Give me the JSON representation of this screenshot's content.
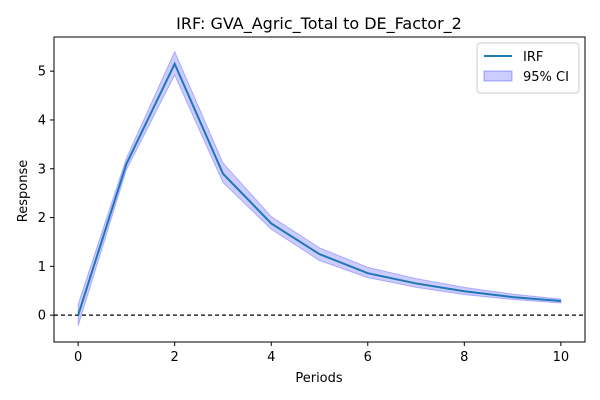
{
  "chart_data": {
    "type": "line",
    "title": "IRF: GVA_Agric_Total to DE_Factor_2",
    "xlabel": "Periods",
    "ylabel": "Response",
    "xlim": [
      -0.5,
      10.5
    ],
    "ylim": [
      -0.55,
      5.7
    ],
    "x_ticks": [
      0,
      2,
      4,
      6,
      8,
      10
    ],
    "y_ticks": [
      0,
      1,
      2,
      3,
      4,
      5
    ],
    "grid": false,
    "legend_position": "top-right",
    "reference_line": {
      "y": 0,
      "style": "dashed",
      "color": "#000000"
    },
    "x": [
      0,
      1,
      2,
      3,
      4,
      5,
      6,
      7,
      8,
      9,
      10
    ],
    "series": [
      {
        "name": "IRF",
        "kind": "line",
        "color": "#1f77b4",
        "values": [
          0.0,
          3.1,
          5.15,
          2.9,
          1.88,
          1.25,
          0.86,
          0.65,
          0.49,
          0.37,
          0.29
        ]
      },
      {
        "name": "95% CI",
        "kind": "band",
        "color": "#0000ff",
        "lower": [
          -0.22,
          2.98,
          4.92,
          2.72,
          1.76,
          1.12,
          0.77,
          0.57,
          0.42,
          0.32,
          0.25
        ],
        "upper": [
          0.22,
          3.22,
          5.4,
          3.12,
          2.02,
          1.38,
          0.98,
          0.75,
          0.57,
          0.43,
          0.33
        ]
      }
    ]
  }
}
